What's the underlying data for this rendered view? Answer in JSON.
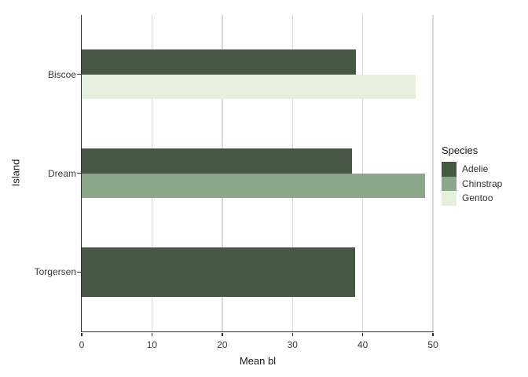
{
  "chart_data": {
    "type": "bar",
    "orientation": "horizontal",
    "title": "",
    "xlabel": "Mean bl",
    "ylabel": "Island",
    "categories": [
      "Biscoe",
      "Dream",
      "Torgersen"
    ],
    "series": [
      {
        "name": "Adelie",
        "color": "#465843",
        "values": [
          38.98,
          38.5,
          38.95
        ]
      },
      {
        "name": "Chinstrap",
        "color": "#8BA689",
        "values": [
          null,
          48.83,
          null
        ]
      },
      {
        "name": "Gentoo",
        "color": "#E4F0DB",
        "values": [
          47.5,
          null,
          null
        ]
      }
    ],
    "x_ticks": [
      0,
      10,
      20,
      30,
      40,
      50
    ],
    "xlim": [
      0,
      50.1
    ],
    "grid": "major-x-only",
    "legend": {
      "title": "Species",
      "position": "right"
    },
    "style": {
      "axis_line_color": "#2E2E2E",
      "gridline_color": "#D9D9D9",
      "tick_text_color": "#3A3A3A",
      "title_text_color": "#1A1A1A",
      "background_color": "#FFFFFF"
    }
  }
}
